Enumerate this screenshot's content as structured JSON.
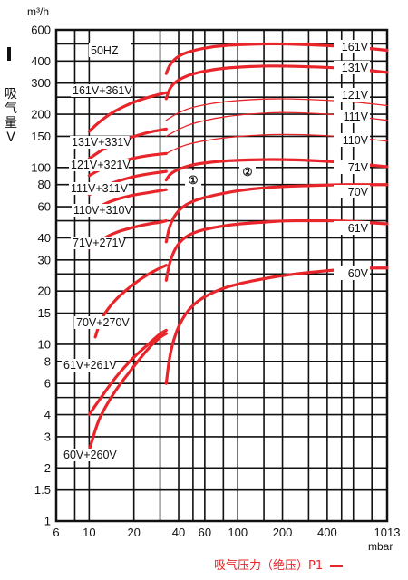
{
  "chart_data": {
    "type": "line",
    "title": "",
    "y_unit": "m³/h",
    "x_unit": "mbar",
    "ylabel": "吸气量V",
    "xlabel": "吸气压力（绝压）P1",
    "y_scale": "log",
    "x_scale": "log",
    "ylim": [
      1,
      600
    ],
    "xlim": [
      6,
      1013
    ],
    "grid": true,
    "y_ticks": [
      1,
      1.5,
      2,
      3,
      4,
      5,
      6,
      8,
      10,
      15,
      20,
      30,
      40,
      50,
      60,
      80,
      100,
      150,
      200,
      300,
      400,
      500,
      600
    ],
    "y_tick_labels": [
      "1",
      "1.5",
      "2",
      "3",
      "4",
      "",
      "6",
      "8",
      "10",
      "15",
      "20",
      "30",
      "40",
      "",
      "60",
      "80",
      "100",
      "150",
      "200",
      "300",
      "400",
      "",
      "600"
    ],
    "x_ticks": [
      6,
      10,
      20,
      40,
      60,
      100,
      200,
      400,
      1013
    ],
    "x_tick_labels": [
      "6",
      "10",
      "20",
      "40",
      "60",
      "100",
      "200",
      "400",
      "1013"
    ],
    "frequency_label": "50HZ",
    "markers": [
      "①",
      "②"
    ],
    "single_series": [
      {
        "name": "161V",
        "color": "#e8252a",
        "x": [
          33,
          35,
          40,
          50,
          70,
          100,
          150,
          200,
          300,
          500,
          700,
          1013
        ],
        "y": [
          340,
          385,
          430,
          460,
          485,
          495,
          500,
          500,
          495,
          485,
          475,
          460
        ]
      },
      {
        "name": "131V",
        "color": "#e8252a",
        "x": [
          33,
          35,
          40,
          50,
          70,
          100,
          150,
          200,
          300,
          500,
          700,
          1013
        ],
        "y": [
          245,
          285,
          315,
          340,
          360,
          370,
          375,
          375,
          372,
          365,
          357,
          345
        ]
      },
      {
        "name": "121V",
        "color": "#e8252a",
        "x": [
          33,
          40,
          50,
          70,
          100,
          150,
          200,
          300,
          500,
          700,
          1013
        ],
        "y": [
          185,
          205,
          220,
          232,
          240,
          244,
          245,
          243,
          238,
          232,
          224
        ]
      },
      {
        "name": "111V",
        "color": "#e8252a",
        "x": [
          33,
          40,
          50,
          70,
          100,
          150,
          200,
          300,
          500,
          700,
          1013
        ],
        "y": [
          150,
          165,
          178,
          190,
          198,
          203,
          205,
          203,
          198,
          192,
          185
        ]
      },
      {
        "name": "110V",
        "color": "#e8252a",
        "x": [
          33,
          40,
          50,
          70,
          100,
          150,
          200,
          300,
          500,
          700,
          1013
        ],
        "y": [
          120,
          130,
          138,
          145,
          150,
          153,
          154,
          153,
          150,
          146,
          141
        ]
      },
      {
        "name": "71V",
        "color": "#e8252a",
        "x": [
          33,
          35,
          40,
          50,
          70,
          100,
          150,
          200,
          300,
          500,
          700,
          1013
        ],
        "y": [
          85,
          92,
          98,
          104,
          108,
          110,
          111,
          111,
          110,
          107,
          104,
          101
        ]
      },
      {
        "name": "70V",
        "color": "#e8252a",
        "x": [
          33,
          35,
          40,
          50,
          70,
          100,
          150,
          200,
          300,
          500,
          700,
          1013
        ],
        "y": [
          38,
          48,
          58,
          65,
          70,
          74,
          77,
          78,
          79,
          80,
          80,
          80
        ]
      },
      {
        "name": "61V",
        "color": "#e8252a",
        "x": [
          33,
          35,
          40,
          50,
          70,
          100,
          150,
          200,
          300,
          500,
          700,
          1013
        ],
        "y": [
          23,
          30,
          38,
          43,
          46,
          48,
          49,
          50,
          50,
          50,
          49,
          48
        ]
      },
      {
        "name": "60V",
        "color": "#e8252a",
        "x": [
          33,
          35,
          40,
          50,
          70,
          100,
          150,
          200,
          300,
          500,
          700,
          1013
        ],
        "y": [
          6,
          9,
          13,
          17,
          20,
          22,
          23.5,
          24.5,
          25.5,
          26.5,
          27,
          27
        ]
      }
    ],
    "combo_series": [
      {
        "name": "161V+361V",
        "color": "#e8252a",
        "x": [
          10,
          12,
          15,
          20,
          25,
          30,
          33
        ],
        "y": [
          160,
          185,
          210,
          235,
          250,
          260,
          265
        ]
      },
      {
        "name": "131V+331V",
        "color": "#e8252a",
        "x": [
          10,
          12,
          15,
          20,
          25,
          30,
          33
        ],
        "y": [
          112,
          125,
          138,
          150,
          158,
          163,
          165
        ]
      },
      {
        "name": "121V+321V",
        "color": "#e8252a",
        "x": [
          10,
          12,
          15,
          20,
          25,
          30,
          33
        ],
        "y": [
          90,
          98,
          106,
          113,
          117,
          119,
          120
        ]
      },
      {
        "name": "111V+311V",
        "color": "#e8252a",
        "x": [
          10,
          12,
          15,
          20,
          25,
          30,
          33
        ],
        "y": [
          70,
          77,
          83,
          89,
          92,
          94,
          95
        ]
      },
      {
        "name": "110V+310V",
        "color": "#e8252a",
        "x": [
          10,
          12,
          15,
          20,
          25,
          30,
          33
        ],
        "y": [
          56,
          61,
          66,
          70,
          72,
          74,
          75
        ]
      },
      {
        "name": "71V+271V",
        "color": "#e8252a",
        "x": [
          10,
          12,
          15,
          20,
          25,
          30,
          33
        ],
        "y": [
          35,
          39,
          43,
          46,
          48,
          49,
          50
        ]
      },
      {
        "name": "70V+270V",
        "color": "#e8252a",
        "x": [
          11,
          12,
          15,
          20,
          25,
          30,
          33
        ],
        "y": [
          11,
          14,
          18,
          22,
          25,
          27,
          28
        ]
      },
      {
        "name": "61V+261V",
        "color": "#e8252a",
        "x": [
          10,
          12,
          15,
          20,
          25,
          30,
          33
        ],
        "y": [
          4,
          5,
          6.5,
          8.5,
          10,
          11.5,
          12
        ]
      },
      {
        "name": "60V+260V",
        "color": "#e8252a",
        "x": [
          10,
          11,
          12,
          15,
          20,
          25,
          30,
          33
        ],
        "y": [
          2.5,
          3.3,
          4,
          5.5,
          7.5,
          9.5,
          11,
          11.5
        ]
      }
    ]
  }
}
